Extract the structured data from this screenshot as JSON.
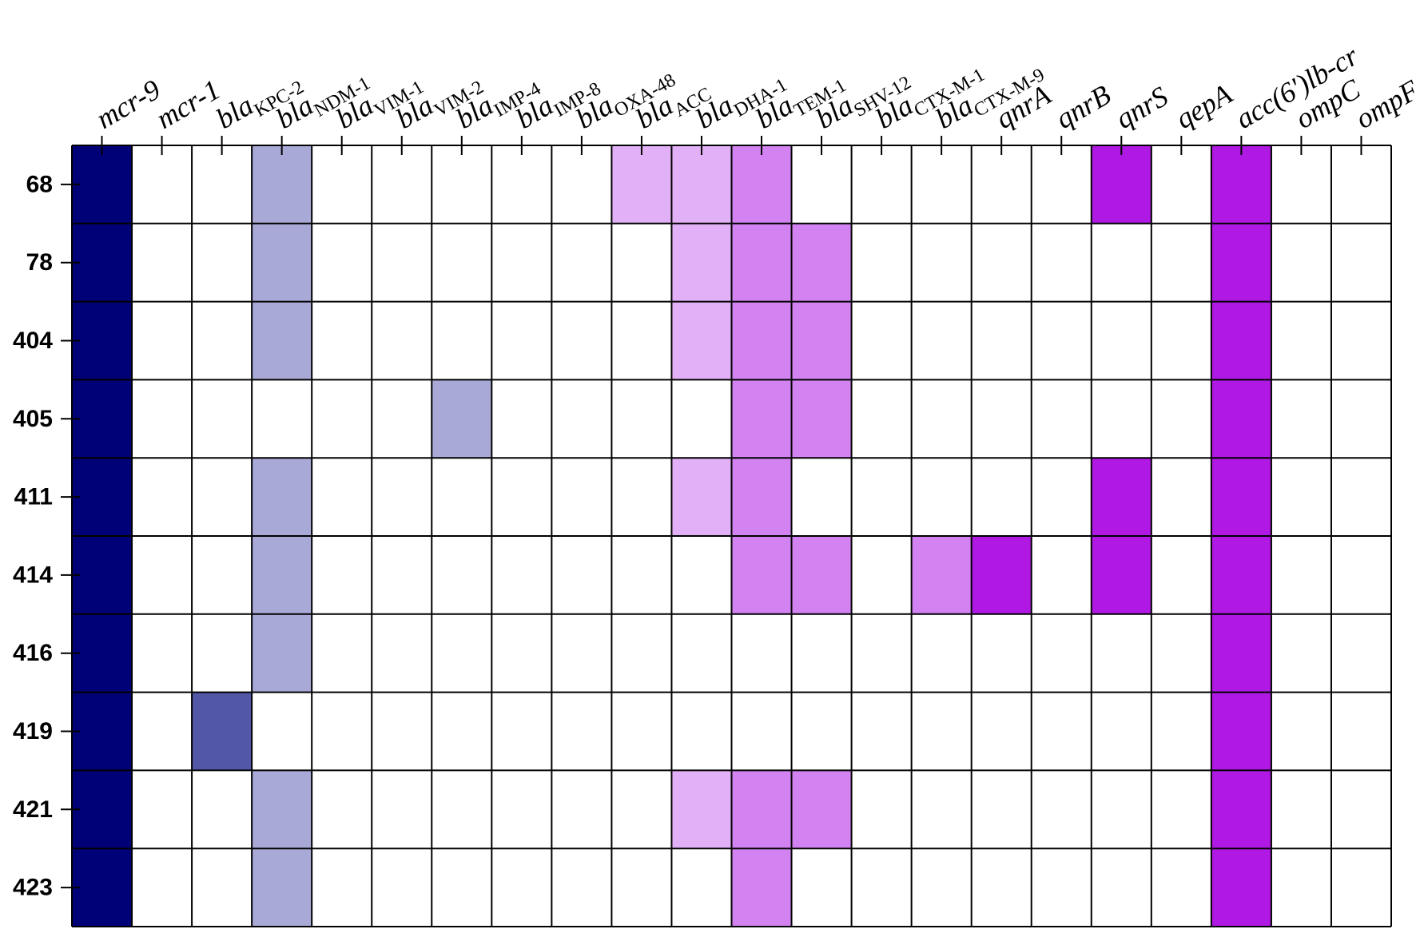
{
  "chart_data": {
    "type": "heatmap",
    "title": "",
    "xlabel": "",
    "ylabel": "",
    "columns": [
      {
        "name": "mcr-9",
        "base": "mcr-9",
        "sub": ""
      },
      {
        "name": "mcr-1",
        "base": "mcr-1",
        "sub": ""
      },
      {
        "name": "blaKPC-2",
        "base": "bla",
        "sub": "KPC-2"
      },
      {
        "name": "blaNDM-1",
        "base": "bla",
        "sub": "NDM-1"
      },
      {
        "name": "blaVIM-1",
        "base": "bla",
        "sub": "VIM-1"
      },
      {
        "name": "blaVIM-2",
        "base": "bla",
        "sub": "VIM-2"
      },
      {
        "name": "blaIMP-4",
        "base": "bla",
        "sub": "IMP-4"
      },
      {
        "name": "blaIMP-8",
        "base": "bla",
        "sub": "IMP-8"
      },
      {
        "name": "blaOXA-48",
        "base": "bla",
        "sub": "OXA-48"
      },
      {
        "name": "blaACC",
        "base": "bla",
        "sub": "ACC"
      },
      {
        "name": "blaDHA-1",
        "base": "bla",
        "sub": "DHA-1"
      },
      {
        "name": "blaTEM-1",
        "base": "bla",
        "sub": "TEM-1"
      },
      {
        "name": "blaSHV-12",
        "base": "bla",
        "sub": "SHV-12"
      },
      {
        "name": "blaCTX-M-1",
        "base": "bla",
        "sub": "CTX-M-1"
      },
      {
        "name": "blaCTX-M-9",
        "base": "bla",
        "sub": "CTX-M-9"
      },
      {
        "name": "qnrA",
        "base": "qnrA",
        "sub": ""
      },
      {
        "name": "qnrB",
        "base": "qnrB",
        "sub": ""
      },
      {
        "name": "qnrS",
        "base": "qnrS",
        "sub": ""
      },
      {
        "name": "qepA",
        "base": "qepA",
        "sub": ""
      },
      {
        "name": "acc(6')lb-cr",
        "base": "acc(6')lb-cr",
        "sub": ""
      },
      {
        "name": "ompC",
        "base": "ompC",
        "sub": ""
      },
      {
        "name": "ompF",
        "base": "ompF",
        "sub": ""
      }
    ],
    "rows": [
      "68",
      "78",
      "404",
      "405",
      "411",
      "414",
      "416",
      "419",
      "421",
      "423"
    ],
    "palette": {
      "0": "#ffffff",
      "1": "#000077",
      "2": "#5358a6",
      "3": "#a9a9d7",
      "4": "#e2b0f6",
      "5": "#d282f1",
      "6": "#b019e3"
    },
    "cells": [
      [
        1,
        0,
        0,
        3,
        0,
        0,
        0,
        0,
        0,
        4,
        4,
        5,
        0,
        0,
        0,
        0,
        0,
        6,
        0,
        6,
        0,
        0
      ],
      [
        1,
        0,
        0,
        3,
        0,
        0,
        0,
        0,
        0,
        0,
        4,
        5,
        5,
        0,
        0,
        0,
        0,
        0,
        0,
        6,
        0,
        0
      ],
      [
        1,
        0,
        0,
        3,
        0,
        0,
        0,
        0,
        0,
        0,
        4,
        5,
        5,
        0,
        0,
        0,
        0,
        0,
        0,
        6,
        0,
        0
      ],
      [
        1,
        0,
        0,
        0,
        0,
        0,
        3,
        0,
        0,
        0,
        0,
        5,
        5,
        0,
        0,
        0,
        0,
        0,
        0,
        6,
        0,
        0
      ],
      [
        1,
        0,
        0,
        3,
        0,
        0,
        0,
        0,
        0,
        0,
        4,
        5,
        0,
        0,
        0,
        0,
        0,
        6,
        0,
        6,
        0,
        0
      ],
      [
        1,
        0,
        0,
        3,
        0,
        0,
        0,
        0,
        0,
        0,
        0,
        5,
        5,
        0,
        5,
        6,
        0,
        6,
        0,
        6,
        0,
        0
      ],
      [
        1,
        0,
        0,
        3,
        0,
        0,
        0,
        0,
        0,
        0,
        0,
        0,
        0,
        0,
        0,
        0,
        0,
        0,
        0,
        6,
        0,
        0
      ],
      [
        1,
        0,
        2,
        0,
        0,
        0,
        0,
        0,
        0,
        0,
        0,
        0,
        0,
        0,
        0,
        0,
        0,
        0,
        0,
        6,
        0,
        0
      ],
      [
        1,
        0,
        0,
        3,
        0,
        0,
        0,
        0,
        0,
        0,
        4,
        5,
        5,
        0,
        0,
        0,
        0,
        0,
        0,
        6,
        0,
        0
      ],
      [
        1,
        0,
        0,
        3,
        0,
        0,
        0,
        0,
        0,
        0,
        0,
        5,
        0,
        0,
        0,
        0,
        0,
        0,
        0,
        6,
        0,
        0
      ]
    ]
  }
}
